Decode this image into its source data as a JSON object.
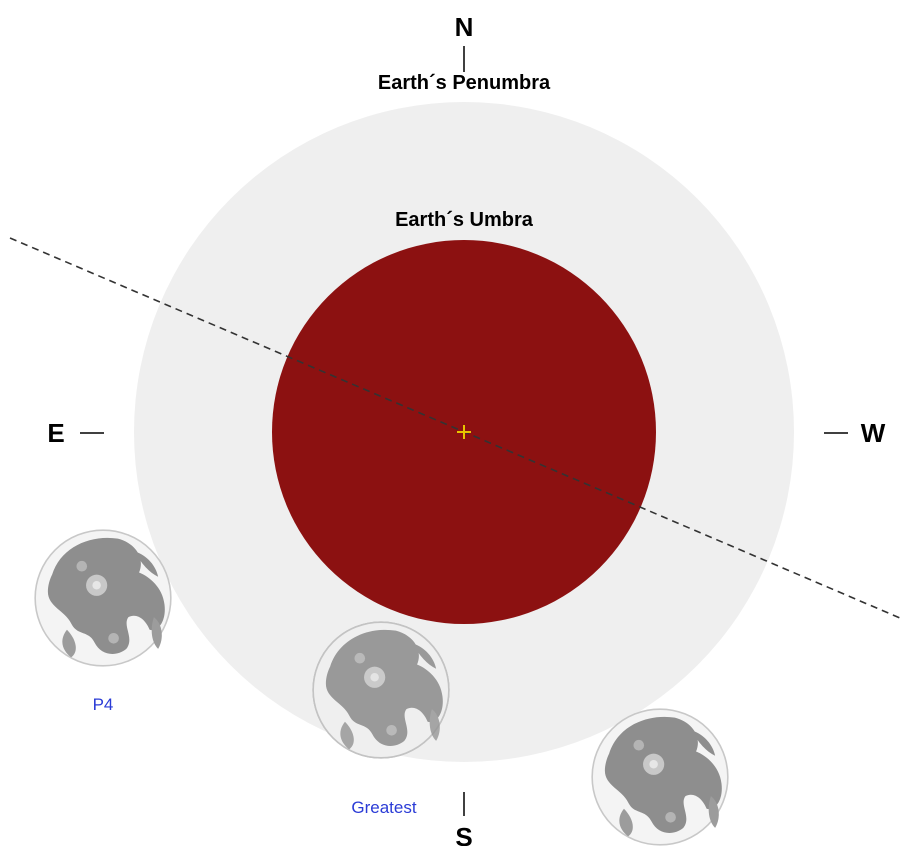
{
  "compass": {
    "north": "N",
    "south": "S",
    "east": "E",
    "west": "W"
  },
  "labels": {
    "penumbra": "Earth´s Penumbra",
    "umbra": "Earth´s Umbra"
  },
  "moons": [
    {
      "label": "P4"
    },
    {
      "label": "Greatest"
    },
    {
      "label": ""
    }
  ],
  "colors": {
    "background": "#ffffff",
    "penumbra": "#efefef",
    "umbra": "#8c1111",
    "center_mark": "#e8c400",
    "moon_label": "#2a3bd6",
    "moon_disc": "#f4f4f4",
    "moon_maria": "#8e8e8e",
    "path_line": "#333333"
  },
  "icons": {
    "center": "plus-icon",
    "moon": "full-moon-icon"
  }
}
